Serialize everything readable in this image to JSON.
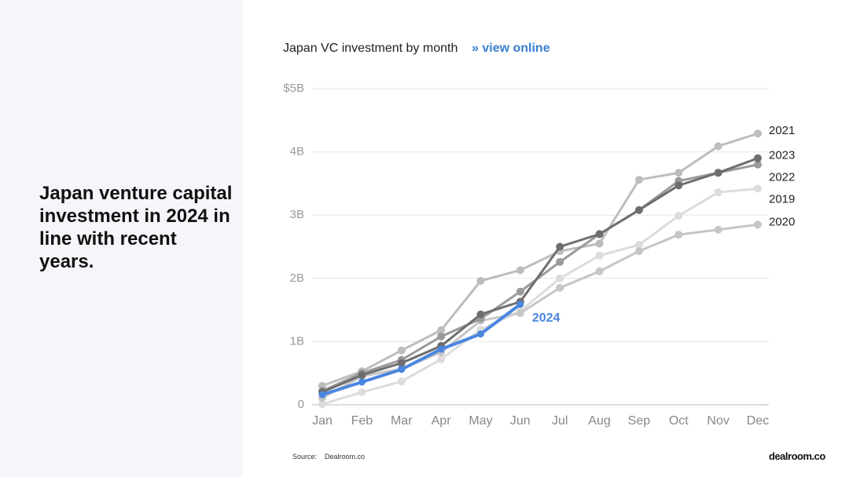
{
  "heading": "Japan venture capital investment in 2024 in line with recent years.",
  "source_label": "Source:",
  "source": "Dealroom.co",
  "logo": "dealroom.co",
  "chart_data": {
    "type": "line",
    "title": "Japan VC investment by month",
    "link": "» view online",
    "categories": [
      "Jan",
      "Feb",
      "Mar",
      "Apr",
      "May",
      "Jun",
      "Jul",
      "Aug",
      "Sep",
      "Oct",
      "Nov",
      "Dec"
    ],
    "ylim": [
      0,
      5
    ],
    "yticks": [
      0,
      {
        "value": 1,
        "label": "1B"
      },
      {
        "value": 2,
        "label": "2B"
      },
      {
        "value": 3,
        "label": "3B"
      },
      {
        "value": 4,
        "label": "4B"
      },
      {
        "value": 5,
        "label": "$5B"
      }
    ],
    "grid": true,
    "series": [
      {
        "name": "2019",
        "color": "#dcdcdc",
        "values": [
          0.01,
          0.2,
          0.37,
          0.72,
          1.19,
          1.48,
          2.0,
          2.36,
          2.53,
          2.99,
          3.36,
          3.42
        ]
      },
      {
        "name": "2020",
        "color": "#c6c6c6",
        "values": [
          0.11,
          0.45,
          0.57,
          0.83,
          1.33,
          1.45,
          1.85,
          2.11,
          2.43,
          2.69,
          2.77,
          2.85
        ]
      },
      {
        "name": "2021",
        "color": "#bdbdbd",
        "values": [
          0.3,
          0.53,
          0.86,
          1.18,
          1.96,
          2.13,
          2.43,
          2.55,
          3.56,
          3.67,
          4.09,
          4.29
        ]
      },
      {
        "name": "2022",
        "color": "#9a9a9a",
        "values": [
          0.22,
          0.5,
          0.71,
          1.08,
          1.36,
          1.79,
          2.26,
          2.7,
          3.08,
          3.54,
          3.67,
          3.8
        ]
      },
      {
        "name": "2023",
        "color": "#6e6e6e",
        "values": [
          0.2,
          0.47,
          0.66,
          0.93,
          1.43,
          1.63,
          2.5,
          2.7,
          3.08,
          3.47,
          3.67,
          3.9
        ]
      },
      {
        "name": "2024",
        "color": "#4a86e0",
        "values": [
          0.16,
          0.36,
          0.56,
          0.88,
          1.12,
          1.59,
          null,
          null,
          null,
          null,
          null,
          null
        ]
      }
    ]
  }
}
